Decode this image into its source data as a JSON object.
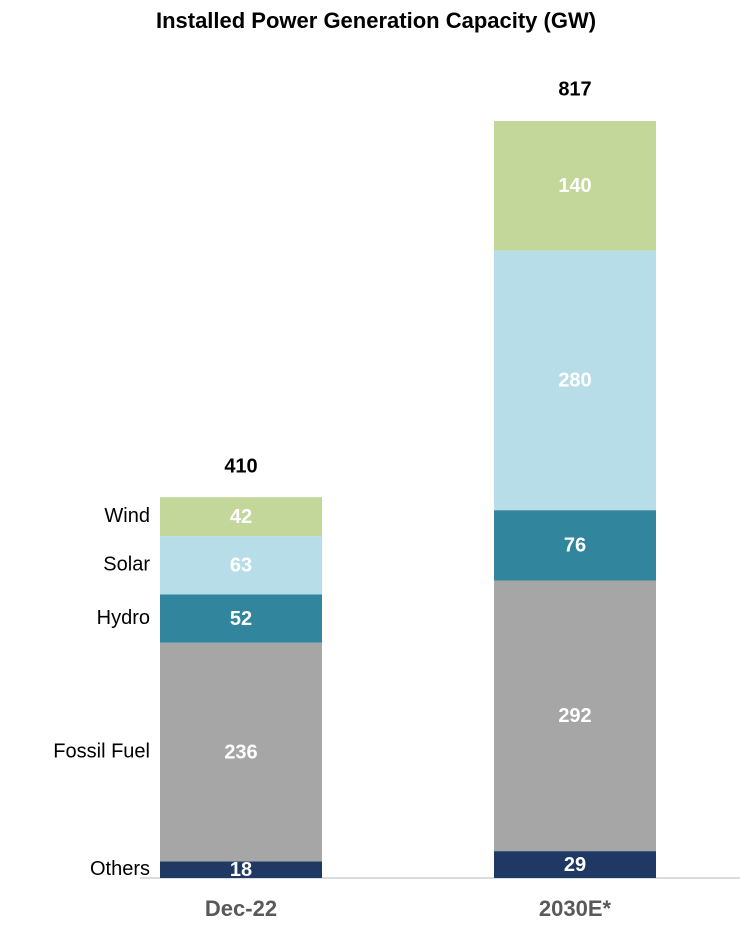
{
  "chart_data": {
    "type": "stacked_bar",
    "title": "Installed Power Generation Capacity (GW)",
    "categories": [
      "Dec-22",
      "2030E*"
    ],
    "series": [
      {
        "name": "Others",
        "color": "#1f3864",
        "values": [
          18,
          29
        ]
      },
      {
        "name": "Fossil Fuel",
        "color": "#a6a6a6",
        "values": [
          236,
          292
        ]
      },
      {
        "name": "Hydro",
        "color": "#31859c",
        "values": [
          52,
          76
        ]
      },
      {
        "name": "Solar",
        "color": "#b7dee8",
        "values": [
          63,
          280
        ]
      },
      {
        "name": "Wind",
        "color": "#c4d79b",
        "values": [
          42,
          140
        ]
      }
    ],
    "totals": [
      410,
      817
    ]
  }
}
